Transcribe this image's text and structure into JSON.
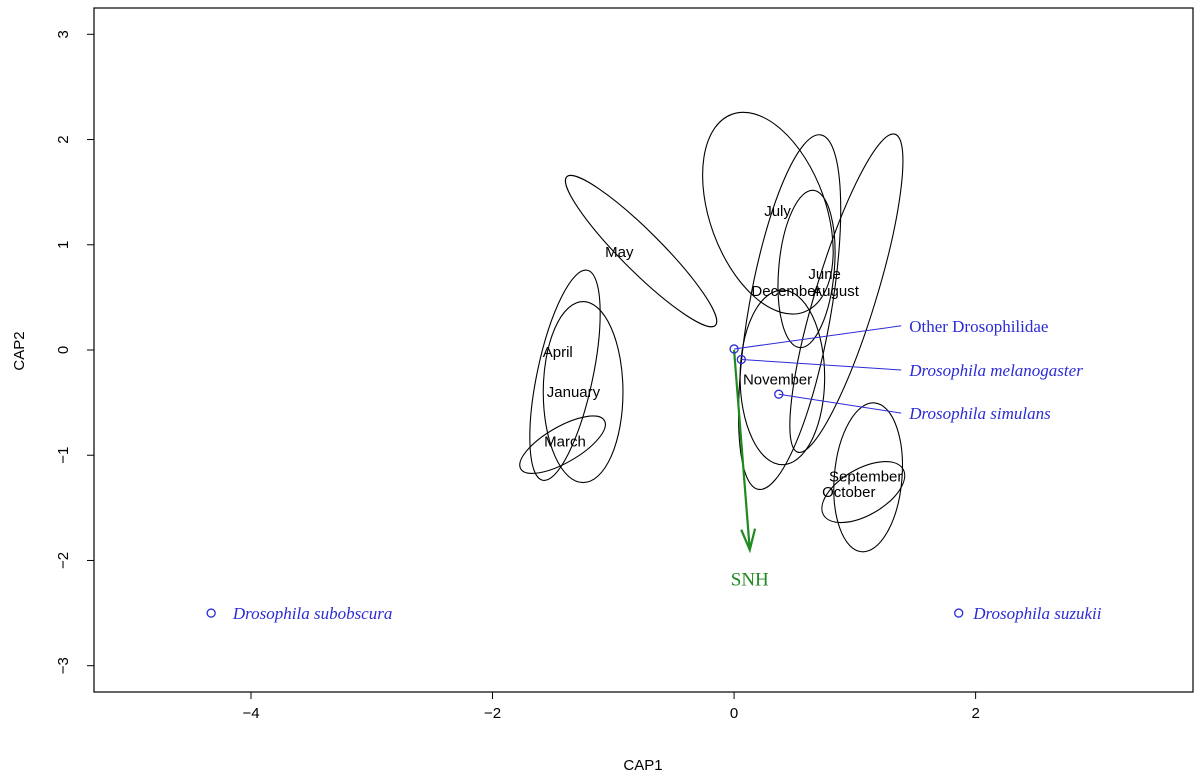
{
  "chart_data": {
    "type": "scatter",
    "xlabel": "CAP1",
    "ylabel": "CAP2",
    "xlim": [
      -5.3,
      3.8
    ],
    "ylim": [
      -3.25,
      3.25
    ],
    "xticks": [
      -4,
      -2,
      0,
      2
    ],
    "yticks": [
      -3,
      -2,
      -1,
      0,
      1,
      2,
      3
    ],
    "colors": {
      "ellipse": "#000000",
      "species": "#2b2bd6",
      "vector": "#1f8a1f"
    },
    "months": [
      {
        "name": "January",
        "label_x": -1.33,
        "label_y": -0.4,
        "ellipse": {
          "cx": -1.25,
          "cy": -0.4,
          "rx": 0.33,
          "ry": 0.86,
          "angle": 0
        }
      },
      {
        "name": "March",
        "label_x": -1.4,
        "label_y": -0.87,
        "ellipse": {
          "cx": -1.42,
          "cy": -0.9,
          "rx": 0.4,
          "ry": 0.17,
          "angle": -30
        }
      },
      {
        "name": "April",
        "label_x": -1.46,
        "label_y": -0.02,
        "ellipse": {
          "cx": -1.4,
          "cy": -0.24,
          "rx": 0.23,
          "ry": 1.02,
          "angle": 12
        }
      },
      {
        "name": "May",
        "label_x": -0.95,
        "label_y": 0.93,
        "ellipse": {
          "cx": -0.77,
          "cy": 0.94,
          "rx": 0.87,
          "ry": 0.19,
          "angle": 45
        }
      },
      {
        "name": "July",
        "label_x": 0.36,
        "label_y": 1.32,
        "ellipse": {
          "cx": 0.28,
          "cy": 1.3,
          "rx": 0.48,
          "ry": 1.0,
          "angle": -20
        }
      },
      {
        "name": "June",
        "label_x": 0.75,
        "label_y": 0.72,
        "ellipse": {
          "cx": 0.46,
          "cy": 0.36,
          "rx": 0.34,
          "ry": 1.71,
          "angle": 10
        }
      },
      {
        "name": "December",
        "label_x": 0.43,
        "label_y": 0.56,
        "ellipse": {
          "cx": 0.6,
          "cy": 0.77,
          "rx": 0.23,
          "ry": 0.75,
          "angle": 5
        }
      },
      {
        "name": "August",
        "label_x": 0.84,
        "label_y": 0.56,
        "ellipse": {
          "cx": 0.93,
          "cy": 0.54,
          "rx": 0.25,
          "ry": 1.58,
          "angle": 17
        }
      },
      {
        "name": "November",
        "label_x": 0.36,
        "label_y": -0.28,
        "ellipse": {
          "cx": 0.4,
          "cy": -0.26,
          "rx": 0.35,
          "ry": 0.83,
          "angle": 0
        }
      },
      {
        "name": "September",
        "label_x": 1.09,
        "label_y": -1.2,
        "ellipse": {
          "cx": 1.11,
          "cy": -1.21,
          "rx": 0.28,
          "ry": 0.71,
          "angle": 5
        }
      },
      {
        "name": "October",
        "label_x": 0.95,
        "label_y": -1.35,
        "ellipse": {
          "cx": 1.07,
          "cy": -1.35,
          "rx": 0.38,
          "ry": 0.22,
          "angle": -30
        }
      }
    ],
    "species": [
      {
        "name": "Drosophila subobscura",
        "x": -4.33,
        "y": -2.5,
        "italic": true,
        "label_x": -4.15,
        "label_y": -2.5,
        "leader": false
      },
      {
        "name": "Drosophila suzukii",
        "x": 1.86,
        "y": -2.5,
        "italic": true,
        "label_x": 1.98,
        "label_y": -2.5,
        "leader": false
      },
      {
        "name": "Other Drosophilidae",
        "x": 0.0,
        "y": 0.01,
        "italic": false,
        "label_x": 1.45,
        "label_y": 0.23,
        "leader": true
      },
      {
        "name": "Drosophila melanogaster",
        "x": 0.06,
        "y": -0.09,
        "italic": true,
        "label_x": 1.45,
        "label_y": -0.19,
        "leader": true
      },
      {
        "name": "Drosophila simulans",
        "x": 0.37,
        "y": -0.42,
        "italic": true,
        "label_x": 1.45,
        "label_y": -0.6,
        "leader": true
      }
    ],
    "vector": {
      "name": "SNH",
      "x": 0.13,
      "y": -1.9,
      "label_x": 0.13,
      "label_y": -2.18
    }
  }
}
